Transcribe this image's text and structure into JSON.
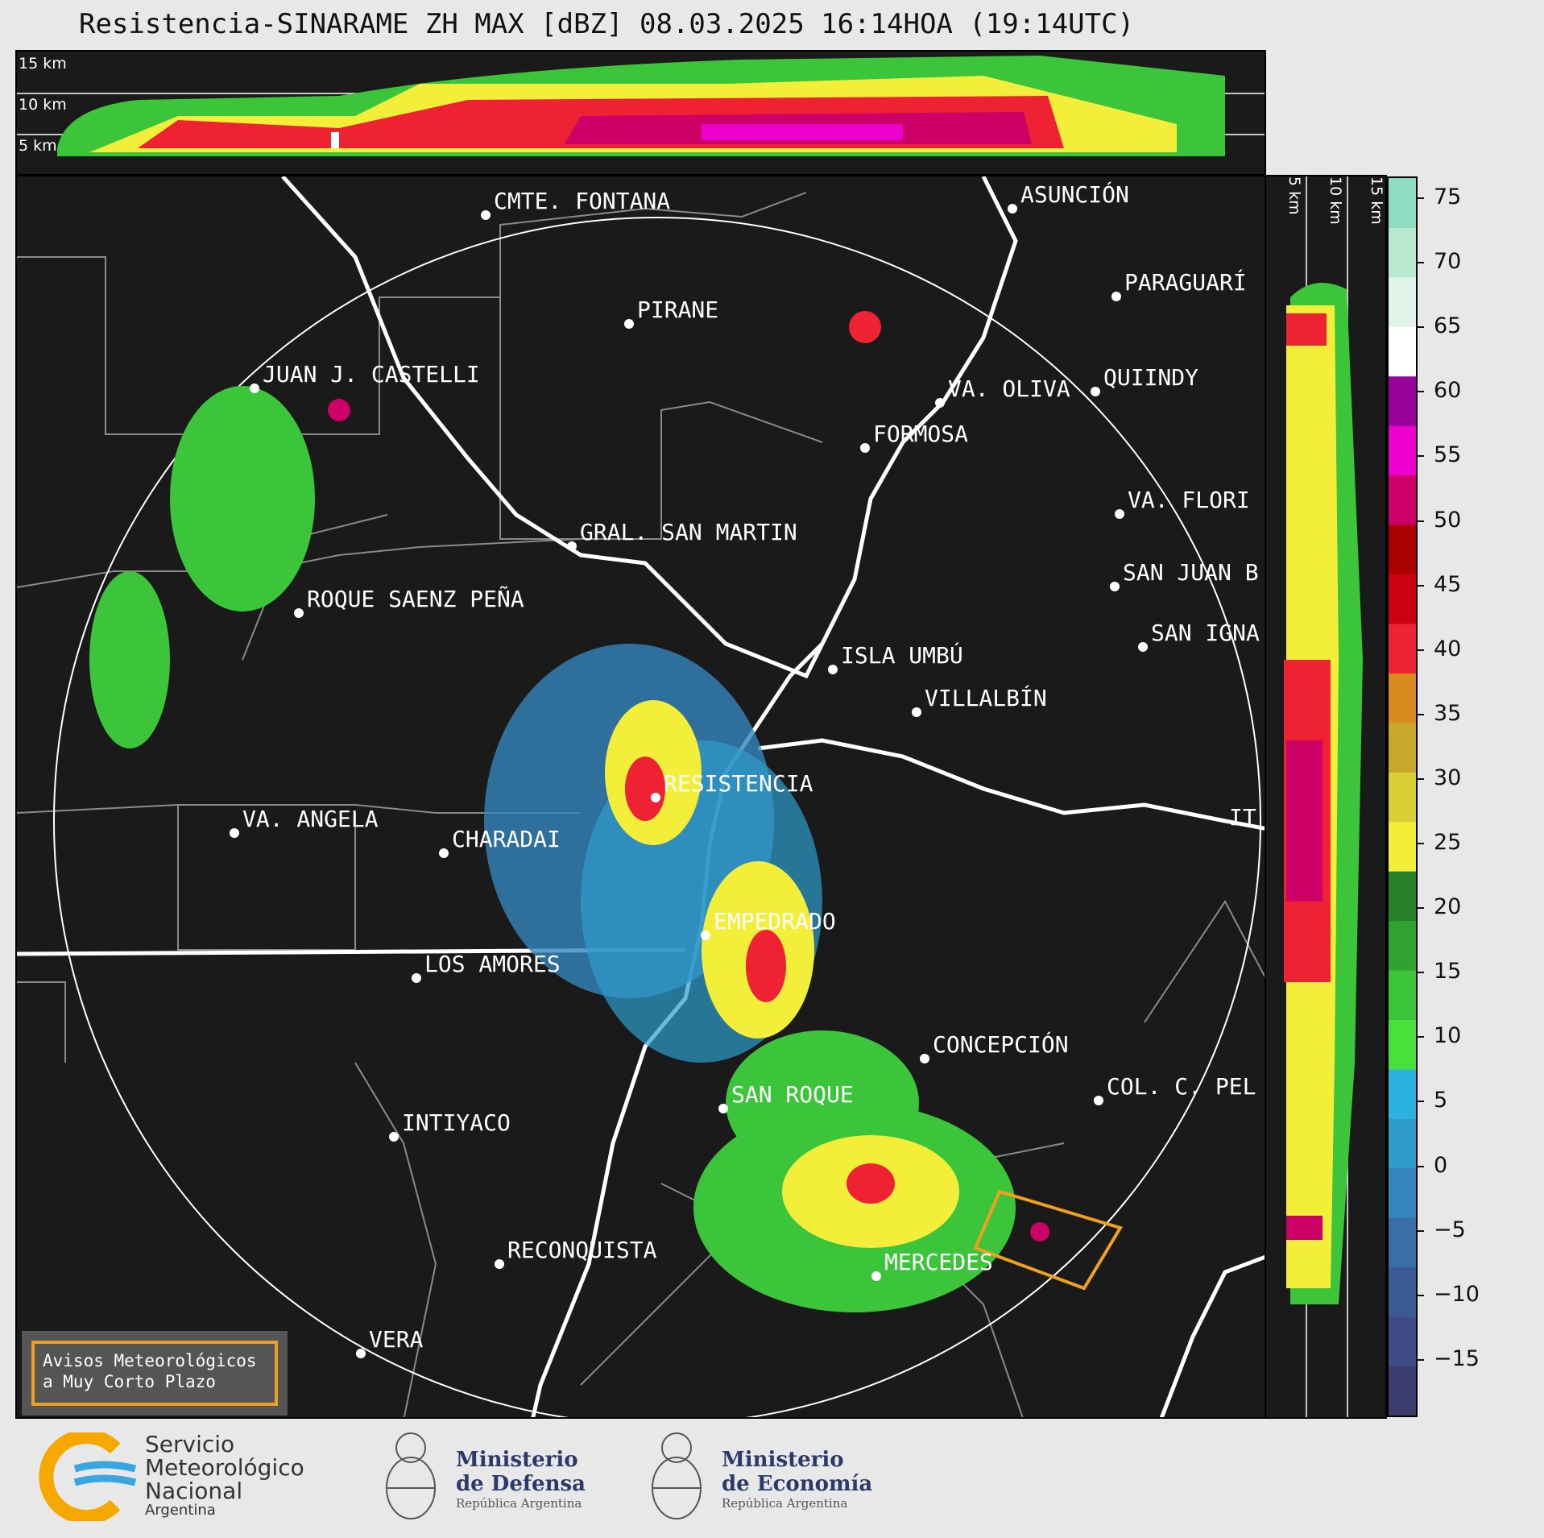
{
  "title": "Resistencia-SINARAME ZH MAX [dBZ] 08.03.2025 16:14HOA (19:14UTC)",
  "top_panel": {
    "heights": [
      "15 km",
      "10 km",
      "5 km"
    ]
  },
  "side_panel": {
    "heights": [
      "5 km",
      "10 km",
      "15 km"
    ]
  },
  "colorbar": {
    "ticks": [
      "75",
      "70",
      "65",
      "60",
      "55",
      "50",
      "45",
      "40",
      "35",
      "30",
      "25",
      "20",
      "15",
      "10",
      "5",
      "0",
      "−5",
      "−10",
      "−15"
    ],
    "colors": [
      "#3c3d6e",
      "#3f4b84",
      "#3b5b95",
      "#3a6ea7",
      "#3585bd",
      "#2e9ccd",
      "#2bb2df",
      "#46e13a",
      "#3cc43a",
      "#2fa22f",
      "#288028",
      "#f2ee3a",
      "#d8d034",
      "#c8a82a",
      "#d88a1e",
      "#ee2233",
      "#cc0011",
      "#aa0000",
      "#cc0066",
      "#ee00cc",
      "#990099",
      "#ffffff",
      "#e0f4ea",
      "#b8e8d0",
      "#90dcc0"
    ]
  },
  "cities": [
    "CMTE. FONTANA",
    "PIRANE",
    "JUAN J. CASTELLI",
    "ASUNCIÓN",
    "PARAGUARÍ",
    "VA. OLIVA",
    "QUIINDY",
    "FORMOSA",
    "VA. FLORI",
    "GRAL. SAN MARTIN",
    "SAN JUAN B",
    "ROQUE SAENZ PEÑA",
    "SAN IGNA",
    "ISLA UMBÚ",
    "VILLALBÍN",
    "RESISTENCIA",
    "VA. ANGELA",
    "CHARADAI",
    "IT",
    "EMPEDRADO",
    "LOS AMORES",
    "CONCEPCIÓN",
    "SAN ROQUE",
    "COL. C. PEL",
    "INTIYACO",
    "RECONQUISTA",
    "MERCEDES",
    "VERA"
  ],
  "warning": {
    "line1": "Avisos Meteorológicos",
    "line2": "a Muy Corto Plazo"
  },
  "logos": {
    "smn": [
      "Servicio",
      "Meteorológico",
      "Nacional",
      "Argentina"
    ],
    "defensa": [
      "Ministerio",
      "de Defensa",
      "República Argentina"
    ],
    "economia": [
      "Ministerio",
      "de Economía",
      "República Argentina"
    ]
  }
}
